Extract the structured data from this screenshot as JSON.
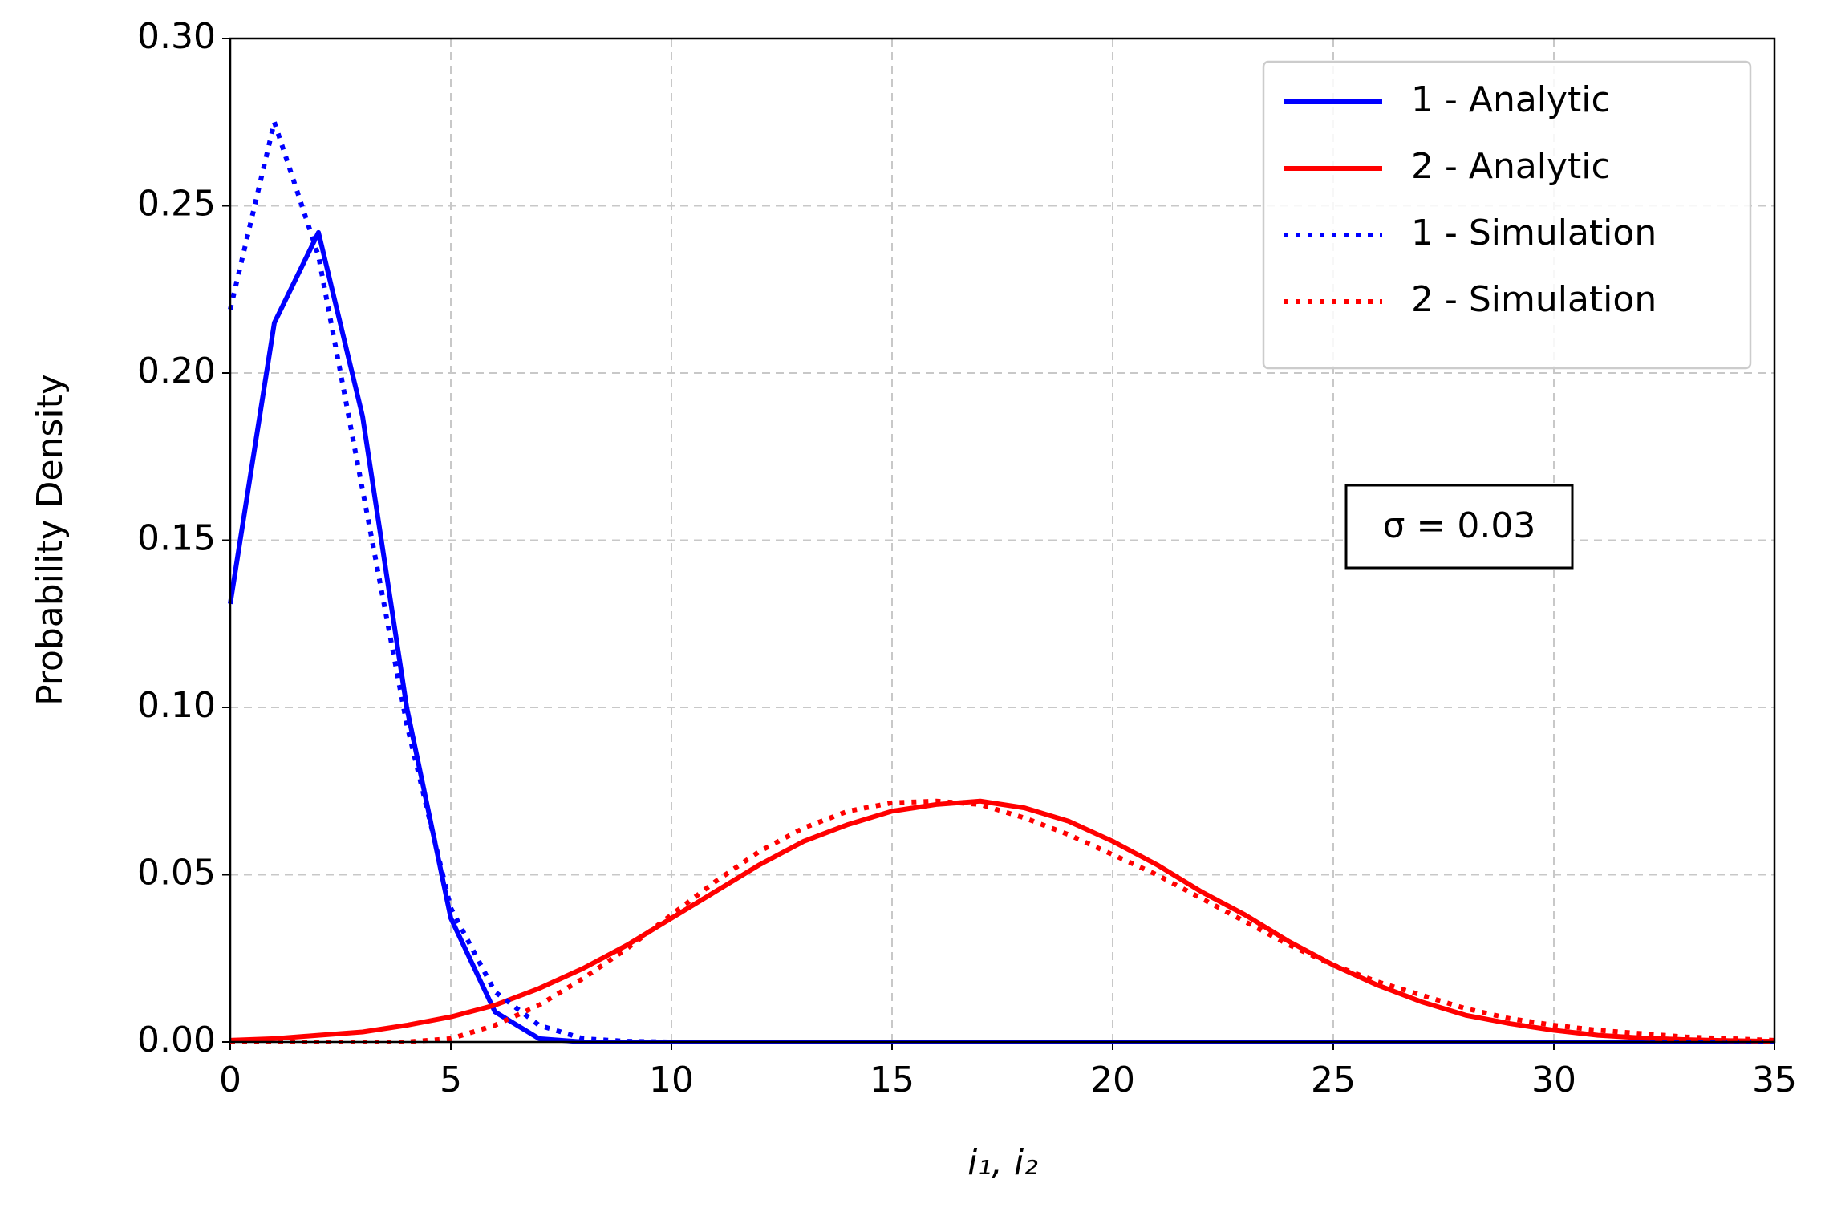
{
  "chart_data": {
    "type": "line",
    "xlabel": "i₁, i₂",
    "ylabel": "Probability Density",
    "annotation": "σ = 0.03",
    "x": [
      0,
      1,
      2,
      3,
      4,
      5,
      6,
      7,
      8,
      9,
      10,
      11,
      12,
      13,
      14,
      15,
      16,
      17,
      18,
      19,
      20,
      21,
      22,
      23,
      24,
      25,
      26,
      27,
      28,
      29,
      30,
      31,
      32,
      33,
      34,
      35
    ],
    "series": [
      {
        "name": "1 - Analytic",
        "color": "#0000ff",
        "style": "solid",
        "values": [
          0.131,
          0.215,
          0.242,
          0.187,
          0.1,
          0.037,
          0.009,
          0.001,
          0,
          0,
          0,
          0,
          0,
          0,
          0,
          0,
          0,
          0,
          0,
          0,
          0,
          0,
          0,
          0,
          0,
          0,
          0,
          0,
          0,
          0,
          0,
          0,
          0,
          0,
          0,
          0
        ]
      },
      {
        "name": "2 - Analytic",
        "color": "#ff0000",
        "style": "solid",
        "values": [
          0.0005,
          0.001,
          0.002,
          0.003,
          0.005,
          0.0075,
          0.011,
          0.016,
          0.022,
          0.029,
          0.037,
          0.045,
          0.053,
          0.06,
          0.065,
          0.069,
          0.071,
          0.072,
          0.07,
          0.066,
          0.06,
          0.053,
          0.045,
          0.038,
          0.03,
          0.023,
          0.017,
          0.012,
          0.008,
          0.0055,
          0.0035,
          0.002,
          0.0012,
          0.0007,
          0.0004,
          0.0002
        ]
      },
      {
        "name": "1 - Simulation",
        "color": "#0000ff",
        "style": "dotted",
        "values": [
          0.219,
          0.275,
          0.235,
          0.165,
          0.095,
          0.04,
          0.015,
          0.005,
          0.001,
          0.0002,
          0,
          0,
          0,
          0,
          0,
          0,
          0,
          0,
          0,
          0,
          0,
          0,
          0,
          0,
          0,
          0,
          0,
          0,
          0,
          0,
          0,
          0,
          0,
          0,
          0,
          0
        ]
      },
      {
        "name": "2 - Simulation",
        "color": "#ff0000",
        "style": "dotted",
        "values": [
          0,
          0,
          0,
          0,
          0,
          0.001,
          0.005,
          0.011,
          0.019,
          0.028,
          0.038,
          0.048,
          0.057,
          0.064,
          0.069,
          0.0715,
          0.072,
          0.071,
          0.067,
          0.062,
          0.056,
          0.05,
          0.043,
          0.036,
          0.029,
          0.023,
          0.018,
          0.014,
          0.01,
          0.007,
          0.005,
          0.0035,
          0.0025,
          0.0015,
          0.001,
          0.0005
        ]
      }
    ],
    "xlim": [
      0,
      35
    ],
    "xticks": [
      0,
      5,
      10,
      15,
      20,
      25,
      30,
      35
    ],
    "ylim": [
      0,
      0.3
    ],
    "yticks": [
      {
        "value": 0,
        "label": "0.00"
      },
      {
        "value": 0.05,
        "label": "0.05"
      },
      {
        "value": 0.1,
        "label": "0.10"
      },
      {
        "value": 0.15,
        "label": "0.15"
      },
      {
        "value": 0.2,
        "label": "0.20"
      },
      {
        "value": 0.25,
        "label": "0.25"
      },
      {
        "value": 0.3,
        "label": "0.30"
      }
    ],
    "grid": true,
    "legend": "upper right"
  }
}
